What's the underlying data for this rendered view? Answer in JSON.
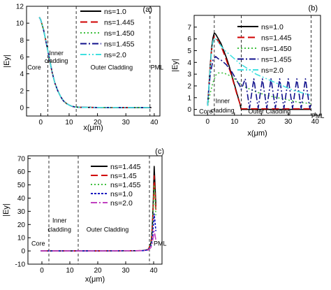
{
  "chart_data": [
    {
      "type": "line",
      "panel_label": "(a)",
      "title": "",
      "xlabel": "x(μm)",
      "ylabel": "|Ey|",
      "xlim": [
        -5,
        42
      ],
      "ylim": [
        -1,
        12
      ],
      "xticks": [
        0,
        10,
        20,
        30,
        40
      ],
      "yticks": [
        0,
        2,
        4,
        6,
        8,
        10,
        12
      ],
      "grid": false,
      "legend_position": "top-right",
      "boundaries": [
        2.5,
        12.5,
        38.5
      ],
      "regions": [
        {
          "label": "Core",
          "x": -2.3,
          "y": 4.5
        },
        {
          "label": "Inner",
          "x": 5.5,
          "y": 6.2
        },
        {
          "label": "cladding",
          "x": 5.5,
          "y": 5.3
        },
        {
          "label": "Outer Cladding",
          "x": 25,
          "y": 4.5
        },
        {
          "label": "PML",
          "x": 41,
          "y": 4.5
        }
      ],
      "series": [
        {
          "name": "ns=1.0",
          "color": "#000000",
          "dash": "solid",
          "x": [
            -0.5,
            0,
            1,
            2,
            3,
            4,
            5,
            6,
            7,
            8,
            9,
            10,
            11,
            12,
            14,
            20,
            30,
            39
          ],
          "y": [
            10.7,
            10.4,
            9.2,
            7.6,
            5.9,
            4.2,
            2.9,
            2.0,
            1.3,
            0.8,
            0.5,
            0.3,
            0.15,
            0.08,
            0.03,
            0.01,
            0.0,
            0.0
          ]
        },
        {
          "name": "ns=1.445",
          "color": "#d00000",
          "dash": "10,5",
          "x": [
            -0.5,
            0,
            1,
            2,
            3,
            4,
            5,
            6,
            7,
            8,
            9,
            10,
            11,
            12,
            14,
            20,
            30,
            39
          ],
          "y": [
            10.7,
            10.4,
            9.2,
            7.6,
            5.9,
            4.2,
            2.9,
            2.0,
            1.3,
            0.8,
            0.5,
            0.3,
            0.15,
            0.08,
            0.03,
            0.01,
            0.0,
            0.0
          ]
        },
        {
          "name": "ns=1.450",
          "color": "#40c040",
          "dash": "2,3",
          "x": [
            -0.5,
            0,
            1,
            2,
            3,
            4,
            5,
            6,
            7,
            8,
            9,
            10,
            11,
            12,
            14,
            20,
            30,
            39
          ],
          "y": [
            10.7,
            10.4,
            9.2,
            7.6,
            5.9,
            4.2,
            2.9,
            2.0,
            1.3,
            0.8,
            0.5,
            0.3,
            0.15,
            0.08,
            0.03,
            0.01,
            0.0,
            0.0
          ]
        },
        {
          "name": "ns=1.455",
          "color": "#10108c",
          "dash": "9,3,2,3",
          "x": [
            -0.5,
            0,
            1,
            2,
            3,
            4,
            5,
            6,
            7,
            8,
            9,
            10,
            11,
            12,
            14,
            20,
            30,
            39
          ],
          "y": [
            10.7,
            10.4,
            9.2,
            7.6,
            5.9,
            4.2,
            2.9,
            2.0,
            1.3,
            0.8,
            0.5,
            0.3,
            0.15,
            0.08,
            0.03,
            0.01,
            0.0,
            0.0
          ]
        },
        {
          "name": "ns=2.0",
          "color": "#40e0e0",
          "dash": "9,3,2,3,2,3",
          "x": [
            -0.5,
            0,
            1,
            2,
            3,
            4,
            5,
            6,
            7,
            8,
            9,
            10,
            11,
            12,
            14,
            20,
            30,
            39
          ],
          "y": [
            10.7,
            10.4,
            9.2,
            7.6,
            5.9,
            4.2,
            2.9,
            2.0,
            1.3,
            0.8,
            0.5,
            0.3,
            0.15,
            0.08,
            0.03,
            0.01,
            0.0,
            0.0
          ]
        }
      ]
    },
    {
      "type": "line",
      "panel_label": "(b)",
      "title": "",
      "xlabel": "x(μm)",
      "ylabel": "|Ey|",
      "xlim": [
        -5,
        42
      ],
      "ylim": [
        -0.5,
        8
      ],
      "xticks": [
        0,
        10,
        20,
        30,
        40
      ],
      "yticks": [
        0,
        1,
        2,
        3,
        4,
        5,
        6,
        7
      ],
      "grid": false,
      "legend_position": "top-right",
      "boundaries": [
        2.5,
        12.5,
        38.5
      ],
      "regions": [
        {
          "label": "Core",
          "x": -0.6,
          "y": -0.35
        },
        {
          "label": "Inner",
          "x": 5.6,
          "y": 0.55
        },
        {
          "label": "cladding",
          "x": 5.6,
          "y": -0.25
        },
        {
          "label": "Outer Cladding",
          "x": 23,
          "y": -0.35
        },
        {
          "label": "PML",
          "x": 41,
          "y": -0.75
        }
      ],
      "series": [
        {
          "name": "ns=1.0",
          "color": "#000000",
          "dash": "solid",
          "x": [
            0,
            0.5,
            1,
            1.5,
            2,
            2.5,
            3,
            4,
            5,
            6,
            7,
            8,
            9,
            10,
            11,
            12,
            12.5,
            20,
            30,
            38.5
          ],
          "y": [
            0.3,
            2.0,
            3.8,
            5.2,
            6.1,
            6.5,
            6.4,
            6.0,
            5.6,
            5.0,
            4.4,
            3.7,
            2.9,
            2.1,
            1.3,
            0.5,
            0.0,
            0.0,
            0.0,
            0.0
          ]
        },
        {
          "name": "ns=1.445",
          "color": "#d00000",
          "dash": "10,5",
          "x": [
            0,
            0.5,
            1,
            1.5,
            2,
            2.5,
            3,
            4,
            5,
            6,
            7,
            8,
            9,
            10,
            11,
            12,
            12.5,
            20,
            30,
            38.5
          ],
          "y": [
            0.3,
            2.0,
            3.7,
            5.0,
            5.8,
            6.2,
            6.1,
            5.8,
            5.4,
            4.8,
            4.2,
            3.5,
            2.8,
            2.0,
            1.2,
            0.5,
            0.05,
            0.05,
            0.05,
            0.05
          ]
        },
        {
          "name": "ns=1.450",
          "color": "#40c040",
          "dash": "2,3",
          "x": [
            0,
            1,
            2,
            3,
            4,
            6,
            8,
            10,
            12,
            14,
            18,
            22,
            26,
            30,
            34,
            38.5
          ],
          "y": [
            0.3,
            1.4,
            2.3,
            2.9,
            3.1,
            3.1,
            2.9,
            2.6,
            2.2,
            1.9,
            1.5,
            1.2,
            1.0,
            0.8,
            0.6,
            0.5
          ]
        },
        {
          "name": "ns=1.455",
          "color": "#10108c",
          "dash": "9,3,2,3",
          "x": [
            0,
            0.5,
            1,
            2,
            3,
            4,
            5,
            6,
            7,
            8,
            9,
            10,
            11,
            12,
            12.5,
            14,
            15.6,
            17.2,
            18.8,
            20.4,
            22,
            23.6,
            25.2,
            26.8,
            28.4,
            30,
            31.6,
            33.2,
            34.8,
            36.4,
            38,
            38.5
          ],
          "y": [
            0.4,
            1.8,
            3.0,
            4.2,
            4.5,
            4.3,
            4.2,
            4.0,
            3.8,
            3.5,
            3.2,
            2.8,
            2.4,
            2.0,
            1.7,
            2.6,
            0.1,
            2.6,
            0.1,
            2.6,
            0.1,
            2.6,
            0.1,
            2.6,
            0.1,
            2.6,
            0.1,
            2.6,
            0.1,
            2.6,
            0.1,
            0.5
          ]
        },
        {
          "name": "ns=2.0",
          "color": "#40e0e0",
          "dash": "9,3,2,3,2,3",
          "x": [
            0,
            0.5,
            1,
            1.5,
            2,
            2.5,
            3,
            4,
            5,
            6,
            8,
            10,
            12,
            14,
            16,
            18,
            20,
            22,
            24,
            26,
            28,
            30,
            32,
            34,
            36,
            38.5
          ],
          "y": [
            0.3,
            2.0,
            3.6,
            5.0,
            5.8,
            6.1,
            6.0,
            5.7,
            5.4,
            5.1,
            4.7,
            4.3,
            3.9,
            3.6,
            3.3,
            3.0,
            2.8,
            2.6,
            2.4,
            2.2,
            2.0,
            1.8,
            1.6,
            1.5,
            1.35,
            1.2
          ]
        }
      ]
    },
    {
      "type": "line",
      "panel_label": "(c)",
      "title": "",
      "xlabel": "x(μm)",
      "ylabel": "|Ey|",
      "xlim": [
        -5,
        43
      ],
      "ylim": [
        -10,
        72
      ],
      "xticks": [
        0,
        10,
        20,
        30,
        40
      ],
      "yticks": [
        -10,
        0,
        10,
        20,
        30,
        40,
        50,
        60,
        70
      ],
      "grid": false,
      "legend_position": "top-center",
      "boundaries": [
        2.5,
        13,
        38.5
      ],
      "regions": [
        {
          "label": "Core",
          "x": -1.3,
          "y": 4
        },
        {
          "label": "Inner",
          "x": 6.3,
          "y": 21.5
        },
        {
          "label": "cladding",
          "x": 6.3,
          "y": 14.5
        },
        {
          "label": "Outer Cladding",
          "x": 23.5,
          "y": 14.5
        },
        {
          "label": "PML",
          "x": 42.3,
          "y": 4
        }
      ],
      "series": [
        {
          "name": "ns=1.445",
          "color": "#000000",
          "dash": "solid",
          "x": [
            -0.5,
            20,
            36,
            38,
            38.5,
            39,
            39.3,
            39.6,
            39.9,
            40.2,
            40.5,
            40.8
          ],
          "y": [
            0,
            0,
            0.2,
            1,
            3,
            6,
            11,
            22,
            40,
            64,
            50,
            34
          ]
        },
        {
          "name": "ns=1.45",
          "color": "#d00000",
          "dash": "10,5",
          "x": [
            -0.5,
            20,
            36,
            38,
            38.5,
            39,
            39.3,
            39.6,
            39.9,
            40.2,
            40.5,
            40.8
          ],
          "y": [
            0,
            0,
            0.2,
            1,
            3,
            5.5,
            10,
            20,
            36,
            57,
            45,
            31
          ]
        },
        {
          "name": "ns=1.455",
          "color": "#40c040",
          "dash": "2,3",
          "x": [
            -0.5,
            20,
            36,
            38,
            38.5,
            39,
            39.3,
            39.6,
            39.9,
            40.2,
            40.5,
            40.8
          ],
          "y": [
            0,
            0,
            0.2,
            1,
            2.8,
            5,
            9,
            18,
            33,
            50,
            40,
            27
          ]
        },
        {
          "name": "ns=1.0",
          "color": "#1010c0",
          "dash": "3,2",
          "x": [
            -0.5,
            20,
            36,
            38,
            38.5,
            39,
            39.3,
            39.6,
            39.9,
            40.2,
            40.5,
            40.8
          ],
          "y": [
            0,
            0,
            0.2,
            0.8,
            2,
            3.5,
            6,
            11,
            19,
            28,
            22,
            15
          ]
        },
        {
          "name": "ns=2.0",
          "color": "#c040c0",
          "dash": "9,3,2,3",
          "x": [
            -0.5,
            20,
            36,
            38,
            38.5,
            39,
            39.3,
            39.6,
            39.9,
            40.2,
            40.5,
            40.8
          ],
          "y": [
            0,
            0,
            0.2,
            0.6,
            1.5,
            2.5,
            4,
            7,
            11,
            15,
            12,
            8
          ]
        }
      ]
    }
  ]
}
